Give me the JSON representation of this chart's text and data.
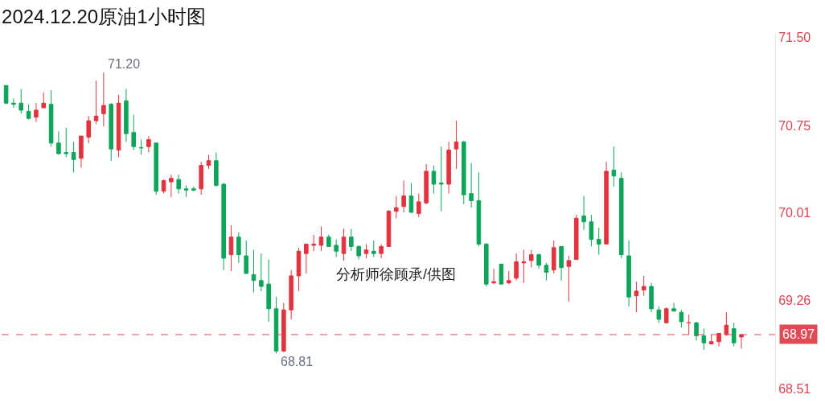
{
  "chart_data": {
    "type": "candlestick",
    "title": "2024.12.20原油1小时图",
    "categories": [
      null,
      null,
      null,
      null,
      null,
      null,
      null,
      null,
      null,
      null,
      null,
      null,
      null,
      null,
      null,
      null,
      null,
      null,
      null,
      null,
      null,
      null,
      null,
      null,
      null,
      null,
      null,
      null,
      null,
      null,
      null,
      null,
      null,
      null,
      null,
      null,
      null,
      null,
      null,
      null,
      null,
      null,
      null,
      null,
      null,
      null,
      null,
      null,
      null,
      null,
      null,
      null,
      null,
      null,
      null,
      null,
      null,
      null,
      null,
      null,
      null,
      null,
      null,
      null,
      null,
      null,
      null,
      null,
      null,
      null,
      null,
      null,
      null,
      null,
      null,
      null,
      null,
      null,
      null,
      null,
      null,
      null,
      null,
      null,
      null,
      null,
      null,
      null,
      null,
      null,
      null,
      null,
      null,
      null,
      null,
      null,
      null,
      null,
      null
    ],
    "ohlc": [
      [
        71.09,
        71.09,
        70.93,
        70.94
      ],
      [
        70.94,
        70.98,
        70.9,
        70.93
      ],
      [
        70.94,
        71.06,
        70.85,
        70.88
      ],
      [
        70.87,
        70.93,
        70.8,
        70.81
      ],
      [
        70.82,
        70.94,
        70.78,
        70.88
      ],
      [
        70.9,
        71.03,
        70.9,
        70.94
      ],
      [
        70.93,
        71.05,
        70.57,
        70.6
      ],
      [
        70.6,
        70.7,
        70.5,
        70.51
      ],
      [
        70.52,
        70.73,
        70.48,
        70.51
      ],
      [
        70.52,
        70.61,
        70.35,
        70.46
      ],
      [
        70.47,
        70.66,
        70.39,
        70.66
      ],
      [
        70.65,
        70.83,
        70.6,
        70.79
      ],
      [
        70.79,
        71.13,
        70.76,
        70.83
      ],
      [
        70.85,
        71.2,
        70.74,
        70.92
      ],
      [
        70.93,
        70.94,
        70.45,
        70.55
      ],
      [
        70.54,
        71.01,
        70.48,
        70.94
      ],
      [
        70.96,
        71.06,
        70.61,
        70.68
      ],
      [
        70.69,
        70.84,
        70.54,
        70.57
      ],
      [
        70.56,
        70.63,
        70.5,
        70.56
      ],
      [
        70.57,
        70.66,
        70.52,
        70.63
      ],
      [
        70.6,
        70.6,
        70.16,
        70.19
      ],
      [
        70.19,
        70.29,
        70.17,
        70.28
      ],
      [
        70.27,
        70.33,
        70.14,
        70.3
      ],
      [
        70.29,
        70.33,
        70.17,
        70.21
      ],
      [
        70.21,
        70.24,
        70.14,
        70.2
      ],
      [
        70.2,
        70.23,
        70.19,
        70.21
      ],
      [
        70.21,
        70.44,
        70.16,
        70.41
      ],
      [
        70.41,
        70.5,
        70.38,
        70.45
      ],
      [
        70.45,
        70.52,
        70.23,
        70.24
      ],
      [
        70.25,
        70.26,
        69.52,
        69.62
      ],
      [
        69.65,
        69.9,
        69.51,
        69.8
      ],
      [
        69.8,
        69.84,
        69.58,
        69.65
      ],
      [
        69.64,
        69.77,
        69.49,
        69.49
      ],
      [
        69.48,
        69.69,
        69.33,
        69.43
      ],
      [
        69.43,
        69.66,
        69.34,
        69.38
      ],
      [
        69.4,
        69.61,
        69.08,
        69.19
      ],
      [
        69.19,
        69.29,
        68.81,
        68.83
      ],
      [
        68.83,
        69.24,
        68.82,
        69.18
      ],
      [
        69.18,
        69.52,
        69.1,
        69.47
      ],
      [
        69.47,
        69.71,
        69.34,
        69.68
      ],
      [
        69.66,
        69.74,
        69.49,
        69.74
      ],
      [
        69.73,
        69.82,
        69.68,
        69.74
      ],
      [
        69.73,
        69.89,
        69.68,
        69.8
      ],
      [
        69.8,
        69.82,
        69.72,
        69.72
      ],
      [
        69.73,
        69.78,
        69.63,
        69.68
      ],
      [
        69.66,
        69.87,
        69.6,
        69.8
      ],
      [
        69.8,
        69.87,
        69.68,
        69.72
      ],
      [
        69.72,
        69.73,
        69.61,
        69.64
      ],
      [
        69.66,
        69.74,
        69.62,
        69.69
      ],
      [
        69.68,
        69.77,
        69.63,
        69.66
      ],
      [
        69.66,
        69.74,
        69.62,
        69.72
      ],
      [
        69.72,
        70.03,
        69.72,
        70.02
      ],
      [
        70.02,
        70.15,
        69.96,
        70.05
      ],
      [
        70.06,
        70.28,
        70.01,
        70.15
      ],
      [
        70.15,
        70.26,
        70.01,
        70.01
      ],
      [
        70.0,
        70.17,
        69.97,
        70.1
      ],
      [
        70.09,
        70.42,
        70.08,
        70.36
      ],
      [
        70.36,
        70.41,
        70.17,
        70.25
      ],
      [
        70.26,
        70.57,
        70.02,
        70.25
      ],
      [
        70.25,
        70.61,
        70.17,
        70.54
      ],
      [
        70.55,
        70.79,
        70.38,
        70.61
      ],
      [
        70.61,
        70.62,
        70.08,
        70.16
      ],
      [
        70.17,
        70.43,
        70.05,
        70.11
      ],
      [
        70.11,
        70.35,
        69.72,
        69.74
      ],
      [
        69.74,
        69.75,
        69.38,
        69.4
      ],
      [
        69.41,
        69.53,
        69.4,
        69.42
      ],
      [
        69.57,
        69.57,
        69.4,
        69.4
      ],
      [
        69.41,
        69.51,
        69.4,
        69.43
      ],
      [
        69.45,
        69.66,
        69.43,
        69.59
      ],
      [
        69.58,
        69.69,
        69.41,
        69.59
      ],
      [
        69.6,
        69.69,
        69.54,
        69.65
      ],
      [
        69.65,
        69.66,
        69.53,
        69.56
      ],
      [
        69.56,
        69.58,
        69.43,
        69.5
      ],
      [
        69.52,
        69.77,
        69.49,
        69.71
      ],
      [
        69.72,
        69.72,
        69.43,
        69.54
      ],
      [
        69.55,
        69.64,
        69.25,
        69.6
      ],
      [
        69.61,
        69.99,
        69.61,
        69.96
      ],
      [
        69.98,
        70.15,
        69.86,
        69.93
      ],
      [
        69.93,
        69.99,
        69.72,
        69.78
      ],
      [
        69.78,
        69.88,
        69.65,
        69.74
      ],
      [
        69.74,
        70.44,
        69.74,
        70.36
      ],
      [
        70.37,
        70.57,
        70.23,
        70.32
      ],
      [
        70.3,
        70.35,
        69.62,
        69.65
      ],
      [
        69.64,
        69.77,
        69.21,
        69.29
      ],
      [
        69.3,
        69.42,
        69.16,
        69.34
      ],
      [
        69.35,
        69.47,
        69.3,
        69.38
      ],
      [
        69.38,
        69.41,
        69.16,
        69.19
      ],
      [
        69.18,
        69.21,
        69.07,
        69.1
      ],
      [
        69.07,
        69.2,
        69.07,
        69.19
      ],
      [
        69.19,
        69.24,
        69.17,
        69.17
      ],
      [
        69.16,
        69.18,
        69.03,
        69.08
      ],
      [
        69.07,
        69.14,
        68.97,
        69.07
      ],
      [
        69.07,
        69.08,
        68.92,
        68.96
      ],
      [
        68.96,
        69.02,
        68.84,
        68.9
      ],
      [
        68.89,
        68.97,
        68.89,
        68.91
      ],
      [
        68.91,
        68.98,
        68.87,
        68.98
      ],
      [
        68.97,
        69.16,
        68.96,
        69.05
      ],
      [
        69.02,
        69.07,
        68.87,
        68.9
      ],
      [
        68.95,
        68.97,
        68.85,
        68.97
      ]
    ],
    "colors": [
      "#0ca55a",
      "#0ca55a",
      "#0ca55a",
      "#0ca55a",
      "#e2333f",
      "#e2333f",
      "#0ca55a",
      "#0ca55a",
      "#0ca55a",
      "#0ca55a",
      "#e2333f",
      "#e2333f",
      "#e2333f",
      "#e2333f",
      "#0ca55a",
      "#e2333f",
      "#0ca55a",
      "#0ca55a",
      "#0ca55a",
      "#e2333f",
      "#0ca55a",
      "#e2333f",
      "#e2333f",
      "#0ca55a",
      "#0ca55a",
      "#0ca55a",
      "#e2333f",
      "#e2333f",
      "#0ca55a",
      "#0ca55a",
      "#e2333f",
      "#0ca55a",
      "#0ca55a",
      "#0ca55a",
      "#0ca55a",
      "#0ca55a",
      "#0ca55a",
      "#e2333f",
      "#e2333f",
      "#e2333f",
      "#e2333f",
      "#e2333f",
      "#e2333f",
      "#0ca55a",
      "#0ca55a",
      "#e2333f",
      "#0ca55a",
      "#0ca55a",
      "#e2333f",
      "#0ca55a",
      "#e2333f",
      "#e2333f",
      "#e2333f",
      "#e2333f",
      "#0ca55a",
      "#e2333f",
      "#e2333f",
      "#0ca55a",
      "#0ca55a",
      "#e2333f",
      "#e2333f",
      "#0ca55a",
      "#0ca55a",
      "#0ca55a",
      "#0ca55a",
      "#e2333f",
      "#0ca55a",
      "#e2333f",
      "#e2333f",
      "#e2333f",
      "#e2333f",
      "#0ca55a",
      "#0ca55a",
      "#e2333f",
      "#0ca55a",
      "#e2333f",
      "#e2333f",
      "#0ca55a",
      "#0ca55a",
      "#0ca55a",
      "#e2333f",
      "#0ca55a",
      "#0ca55a",
      "#0ca55a",
      "#e2333f",
      "#e2333f",
      "#0ca55a",
      "#0ca55a",
      "#e2333f",
      "#0ca55a",
      "#0ca55a",
      "#e2333f",
      "#0ca55a",
      "#0ca55a",
      "#e2333f",
      "#e2333f",
      "#e2333f",
      "#0ca55a",
      "#e2333f"
    ],
    "ylim": [
      68.47,
      71.53
    ],
    "yticks": [
      68.51,
      69.26,
      70.01,
      70.75,
      {
        "value": 71.5,
        "label": "71.50"
      }
    ],
    "tick_labels": "y",
    "grid": false,
    "legend": false,
    "ref_lines": [
      {
        "axis": "y",
        "value": 68.97,
        "label": "68.97",
        "color": "#e04b56",
        "line_style": "dashed"
      }
    ],
    "annotations": [
      "71.20",
      "68.81",
      "分析师徐顾承/供图"
    ]
  }
}
